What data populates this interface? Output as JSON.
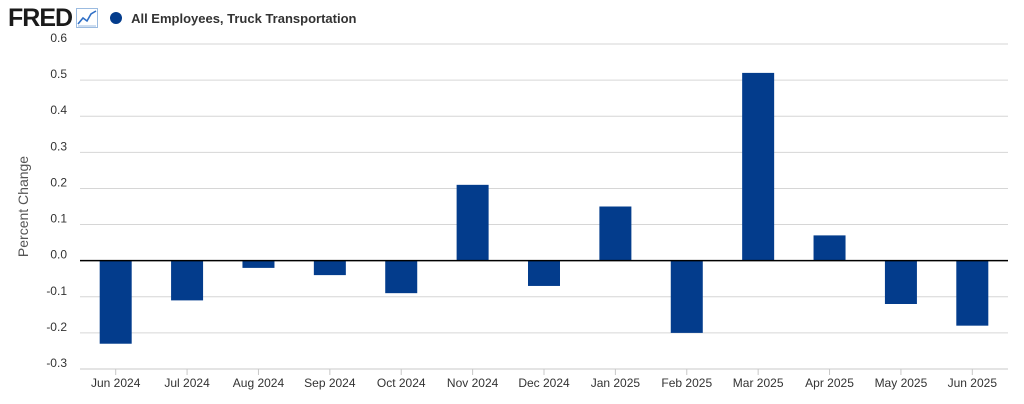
{
  "header": {
    "logo_text": "FRED",
    "logo_icon": "line-chart-icon"
  },
  "chart_data": {
    "type": "bar",
    "categories": [
      "Jun 2024",
      "Jul 2024",
      "Aug 2024",
      "Sep 2024",
      "Oct 2024",
      "Nov 2024",
      "Dec 2024",
      "Jan 2025",
      "Feb 2025",
      "Mar 2025",
      "Apr 2025",
      "May 2025",
      "Jun 2025"
    ],
    "series": [
      {
        "name": "All Employees, Truck Transportation",
        "color": "#033c8c",
        "values": [
          -0.23,
          -0.11,
          -0.02,
          -0.04,
          -0.09,
          0.21,
          -0.07,
          0.15,
          -0.2,
          0.52,
          0.07,
          -0.12,
          -0.18
        ]
      }
    ],
    "title": "",
    "xlabel": "",
    "ylabel": "Percent Change",
    "ylim": [
      -0.3,
      0.6
    ],
    "yticks": [
      0.6,
      0.5,
      0.4,
      0.3,
      0.2,
      0.1,
      0.0,
      -0.1,
      -0.2,
      -0.3
    ],
    "ytick_labels": [
      "0.6",
      "0.5",
      "0.4",
      "0.3",
      "0.2",
      "0.1",
      "0.0",
      "-0.1",
      "-0.2",
      "-0.3"
    ],
    "grid": true,
    "legend_position": "top-left"
  }
}
